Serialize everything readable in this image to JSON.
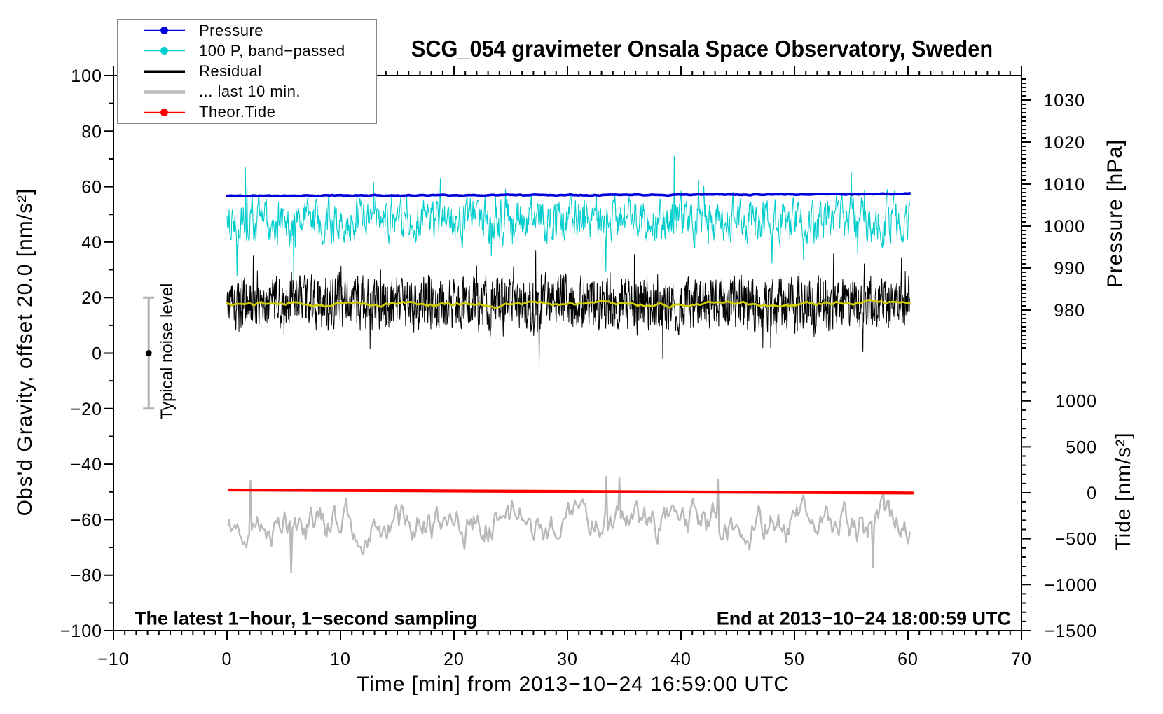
{
  "title": "SCG_054 gravimeter Onsala Space Observatory, Sweden",
  "texts": {
    "sampling_note": "The latest 1−hour, 1−second sampling",
    "end_note": "End at 2013−10−24 18:00:59 UTC",
    "xlabel": "Time [min] from 2013−10−24 16:59:00 UTC",
    "ylabel_left": "Obs'd Gravity, offset 20.0 [nm/s²]",
    "ylabel_pressure": "Pressure [hPa]",
    "ylabel_tide": "Tide [nm/s²]",
    "noise_label": "Typical noise level"
  },
  "legend": {
    "position": "top-left",
    "items": [
      {
        "label": "Pressure",
        "color": "#0000dd",
        "width": 1.5,
        "marker": true
      },
      {
        "label": "100 P, band−passed",
        "color": "#00cdcd",
        "width": 1.5,
        "marker": true
      },
      {
        "label": "Residual",
        "color": "#000000",
        "width": 4,
        "marker": false
      },
      {
        "label": "... last 10 min.",
        "color": "#b9b9b9",
        "width": 4.5,
        "marker": false
      },
      {
        "label": "Theor.Tide",
        "color": "#ff0000",
        "width": 1.5,
        "marker": true
      }
    ]
  },
  "chart_data": {
    "type": "line",
    "title": "SCG_054 gravimeter Onsala Space Observatory, Sweden",
    "grid": false,
    "x_axis": {
      "label": "Time [min] from 2013−10−24 16:59:00 UTC",
      "range": [
        -10,
        70
      ],
      "major_tick_step": 10,
      "minor_tick_step": 1,
      "tick_values": [
        -10,
        0,
        10,
        20,
        30,
        40,
        50,
        60,
        70
      ],
      "tick_labels": [
        "−10",
        "0",
        "10",
        "20",
        "30",
        "40",
        "50",
        "60",
        "70"
      ]
    },
    "y_axis_gravity": {
      "label": "Obs'd Gravity, offset 20.0 [nm/s²]",
      "range": [
        -100,
        100
      ],
      "major_tick_step": 20,
      "minor_tick_step": 10,
      "tick_values": [
        100,
        80,
        60,
        40,
        20,
        0,
        -20,
        -40,
        -60,
        -80,
        -100
      ],
      "tick_labels": [
        "100",
        "80",
        "60",
        "40",
        "20",
        "0",
        "−20",
        "−40",
        "−60",
        "−80",
        "−100"
      ]
    },
    "y_axis_pressure": {
      "label": "Pressure [hPa]",
      "major_tick_step": 10,
      "minor_tick_step": 1,
      "minor_range": [
        971,
        1035
      ],
      "tick_values": [
        1030,
        1020,
        1010,
        1000,
        990,
        980
      ],
      "tick_labels": [
        "1030",
        "1020",
        "1010",
        "1000",
        "990",
        "980"
      ]
    },
    "y_axis_tide": {
      "label": "Tide [nm/s²]",
      "major_tick_step": 500,
      "minor_tick_step": 100,
      "minor_range": [
        -1500,
        1400
      ],
      "tick_values": [
        1000,
        500,
        0,
        -500,
        -1000,
        -1500
      ],
      "tick_labels": [
        "1000",
        "500",
        "0",
        "−500",
        "−1000",
        "−1500"
      ]
    },
    "noise_marker": {
      "label": "Typical noise level",
      "x_position_min": -6.9,
      "value_center": 0,
      "error_half_range": 20,
      "bar_color": "#b0b0b0",
      "dot_color": "#000000"
    },
    "series": [
      {
        "name": "100 P, band−passed",
        "color": "#00cdcd",
        "width": 1.1,
        "shown_in_legend": true,
        "x_start": 0.0,
        "x_end": 60.15,
        "n": 1300,
        "seed": 22,
        "center": 48,
        "phi": 0.5,
        "amp": 6.2,
        "spike_p": 0.03,
        "spike_mult": 1.9,
        "clamp": [
          26,
          63
        ],
        "features": [
          [
            0.9,
            28
          ],
          [
            1.6,
            67
          ],
          [
            1.75,
            61
          ],
          [
            5.9,
            27
          ],
          [
            39.4,
            71
          ],
          [
            55.0,
            65
          ]
        ],
        "description": "band-passed pressure, noisy around gravity-equivalent 48 nm/s2"
      },
      {
        "name": "Residual",
        "color": "#000000",
        "width": 1,
        "shown_in_legend": true,
        "x_start": 0.0,
        "x_end": 60.15,
        "n": 2000,
        "seed": 33,
        "center": 17.8,
        "phi": 0.3,
        "amp": 8.5,
        "spike_p": 0.04,
        "spike_mult": 1.8,
        "clamp": [
          0.5,
          36
        ],
        "features": [
          [
            27.2,
            37
          ],
          [
            27.5,
            -5
          ],
          [
            35.9,
            35.5
          ],
          [
            38.4,
            -2
          ]
        ],
        "description": "residual gravity noise centered near 18 nm/s2, range about 0 to 37"
      },
      {
        "name": "Residual smoothed",
        "color": "#cccc00",
        "width": 2.8,
        "shown_in_legend": false,
        "x_start": 0.0,
        "x_end": 60.15,
        "n": 280,
        "seed": 44,
        "center": 17.7,
        "phi": 0.88,
        "amp": 0.55,
        "clamp": [
          15.8,
          19.6
        ],
        "description": "smooth yellow running-mean of the residual near 17.7 nm/s2"
      },
      {
        "name": "... last 10 min.",
        "color": "#b9b9b9",
        "width": 2.4,
        "shown_in_legend": true,
        "x_start": 0.1,
        "x_end": 60.15,
        "n": 520,
        "seed": 55,
        "center": -61.5,
        "phi": 0.78,
        "amp": 4.4,
        "spike_p": 0.02,
        "spike_mult": 1.5,
        "clamp": [
          -79.5,
          -45.8
        ],
        "features": [
          [
            2.1,
            -46
          ],
          [
            5.6,
            -79
          ],
          [
            33.4,
            -44.5
          ],
          [
            34.6,
            -45
          ],
          [
            43.2,
            -45.5
          ],
          [
            56.9,
            -77
          ]
        ],
        "description": "gray trace centered near -61.5, range about -80 to -45"
      },
      {
        "name": "Theor.Tide",
        "color": "#ff0000",
        "width": 4.3,
        "shown_in_legend": true,
        "model": "linear",
        "x_start": 0.2,
        "x_end": 60.4,
        "v_start": -49.3,
        "v_end": -50.4,
        "tide_axis_values_nms2": [
          20,
          -5
        ],
        "description": "theoretical tide, nearly flat slightly above tide = 0"
      },
      {
        "name": "Pressure",
        "color": "#0000dd",
        "width": 3.6,
        "shown_in_legend": true,
        "x_start": 0.0,
        "x_end": 60.15,
        "n": 700,
        "seed": 11,
        "center": 56.7,
        "phi": 0.85,
        "amp": 0.1,
        "trend": 0.7,
        "clamp": [
          56.2,
          57.9
        ],
        "approx_pressure_hPa": 1007,
        "description": "barometric pressure, nearly flat near 1007 hPa, slight rise"
      }
    ]
  }
}
